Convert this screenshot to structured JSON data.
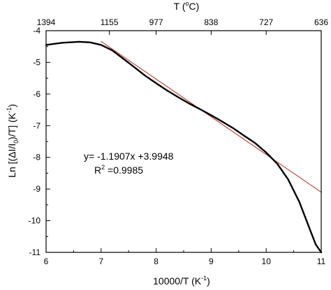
{
  "chart_data": {
    "type": "line",
    "xlabel": {
      "main": "10000/T (K",
      "sup": "-1",
      "end": ")"
    },
    "ylabel": {
      "pre": "Ln [(ΔI/I",
      "sub": "0",
      "mid": ")/T]  (K",
      "sup": "-1",
      "end": ")"
    },
    "top_axis_label": {
      "main": "T (",
      "sup": "o",
      "end": "C)"
    },
    "xlim": [
      6,
      11
    ],
    "ylim": [
      -11,
      -4
    ],
    "x_ticks": [
      6,
      7,
      8,
      9,
      10,
      11
    ],
    "y_ticks": [
      -11,
      -10,
      -9,
      -8,
      -7,
      -6,
      -5,
      -4
    ],
    "x_tick_labels": [
      "6",
      "7",
      "8",
      "9",
      "10",
      "11"
    ],
    "y_tick_labels": [
      "-11",
      "-10",
      "-9",
      "-8",
      "-7",
      "-6",
      "-5",
      "-4"
    ],
    "top_ticks": [
      {
        "x": 6.0,
        "label": "1394"
      },
      {
        "x": 7.15,
        "label": "1155"
      },
      {
        "x": 8.0,
        "label": "977"
      },
      {
        "x": 9.0,
        "label": "838"
      },
      {
        "x": 10.0,
        "label": "727"
      },
      {
        "x": 11.0,
        "label": "636"
      }
    ],
    "grid": false,
    "series": [
      {
        "color": "#000000",
        "x": [
          6.0,
          6.3,
          6.6,
          6.8,
          7.0,
          7.2,
          7.4,
          7.6,
          7.8,
          8.0,
          8.2,
          8.4,
          8.6,
          8.8,
          9.0,
          9.2,
          9.4,
          9.6,
          9.8,
          10.0,
          10.2,
          10.4,
          10.6,
          10.7,
          10.8,
          10.9,
          11.0
        ],
        "y": [
          -4.45,
          -4.38,
          -4.35,
          -4.37,
          -4.45,
          -4.62,
          -4.88,
          -5.15,
          -5.42,
          -5.66,
          -5.89,
          -6.1,
          -6.3,
          -6.48,
          -6.67,
          -6.87,
          -7.08,
          -7.32,
          -7.55,
          -7.85,
          -8.2,
          -8.7,
          -9.4,
          -9.85,
          -10.3,
          -10.75,
          -11.0
        ]
      },
      {
        "color": "#c0392b",
        "x": [
          7.0,
          11.0
        ],
        "y": [
          -4.34,
          -9.1
        ]
      }
    ],
    "annotations": [
      {
        "text": "y= -1.1907x +3.9948"
      },
      {
        "pre": "R",
        "sup": "2",
        "post": " =0.9985"
      }
    ]
  }
}
